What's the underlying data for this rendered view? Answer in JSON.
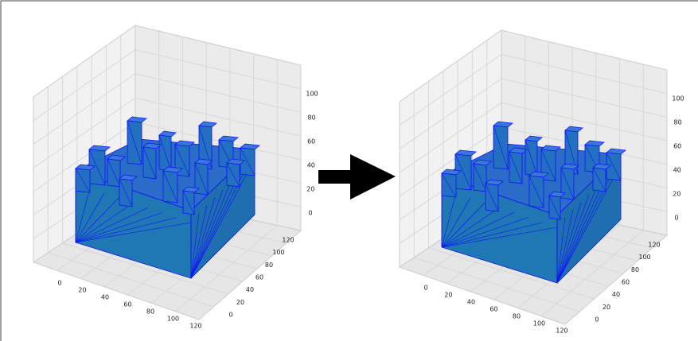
{
  "panels": [
    {
      "x_ticks": [
        0,
        20,
        40,
        60,
        80,
        100,
        120
      ],
      "y_ticks": [
        0,
        20,
        40,
        60,
        80,
        100,
        120
      ],
      "z_ticks": [
        0,
        20,
        40,
        60,
        80,
        100
      ]
    },
    {
      "x_ticks": [
        0,
        20,
        40,
        60,
        80,
        100,
        120
      ],
      "y_ticks": [
        0,
        20,
        40,
        60,
        80,
        100,
        120
      ],
      "z_ticks": [
        0,
        20,
        40,
        60,
        80,
        100
      ]
    }
  ]
}
